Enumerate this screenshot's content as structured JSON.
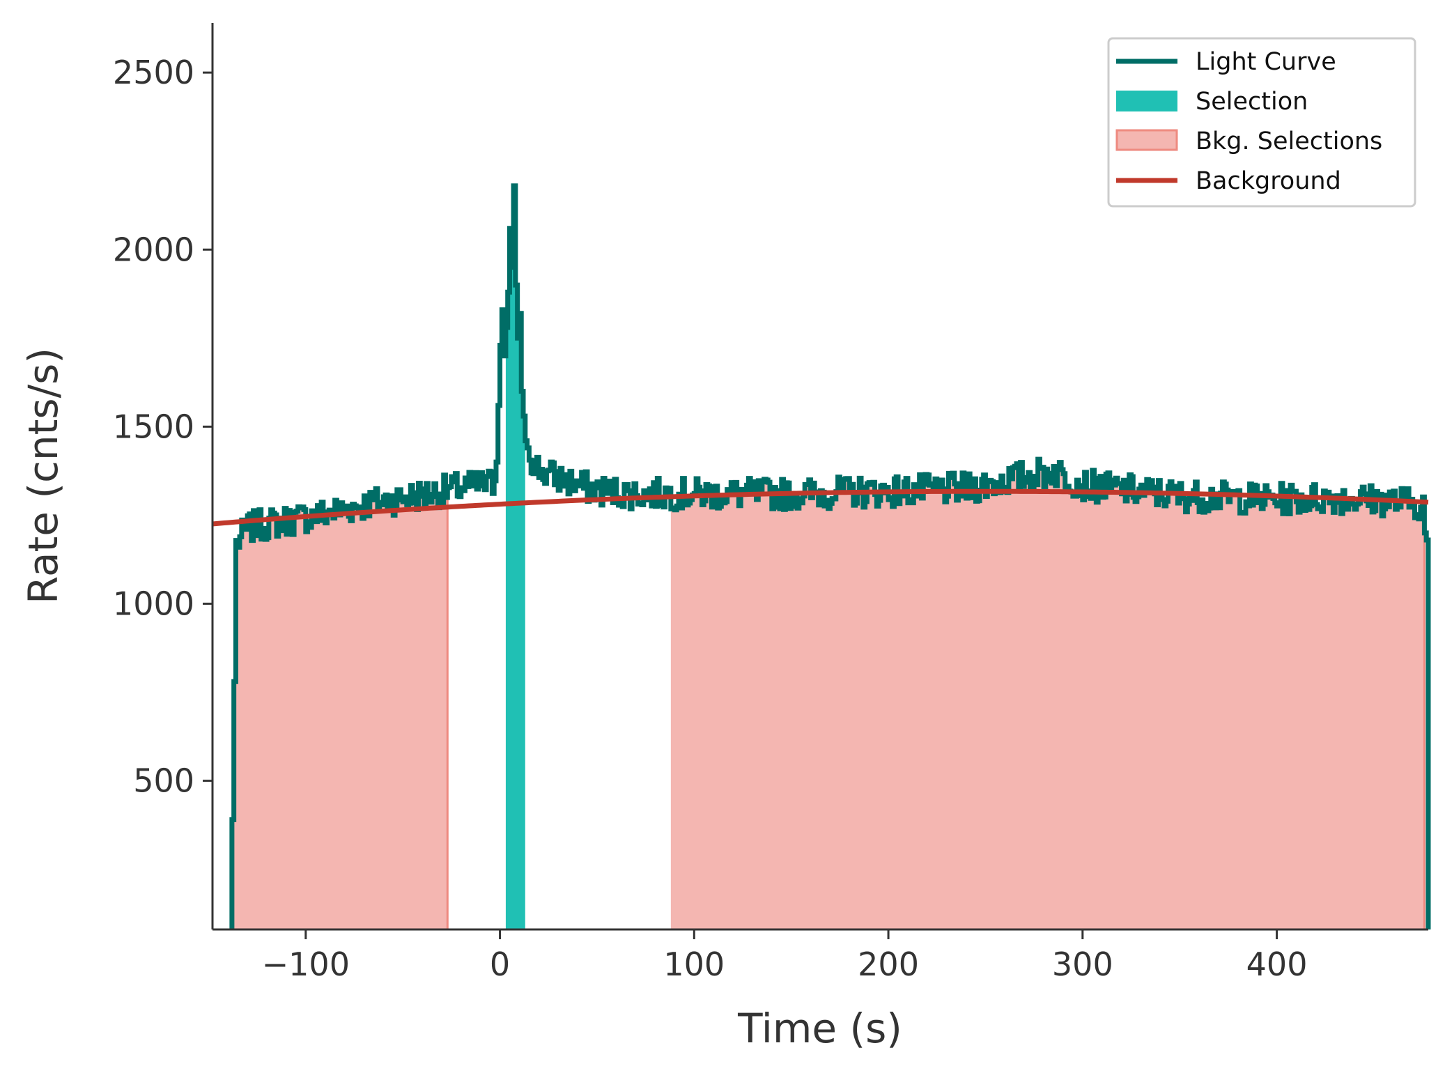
{
  "chart_data": {
    "type": "line",
    "xlabel": "Time (s)",
    "ylabel": "Rate (cnts/s)",
    "xlim": [
      -148,
      478
    ],
    "ylim": [
      80,
      2640
    ],
    "x_ticks": [
      -100,
      0,
      100,
      200,
      300,
      400
    ],
    "x_tick_labels": [
      "−100",
      "0",
      "100",
      "200",
      "300",
      "400"
    ],
    "y_ticks": [
      500,
      1000,
      1500,
      2000,
      2500
    ],
    "y_tick_labels": [
      "500",
      "1000",
      "1500",
      "2000",
      "2500"
    ],
    "grid": false,
    "legend_position": "top-right",
    "colors": {
      "light_curve": "#006d66",
      "selection": "#20c0b4",
      "bkg_fill": "#f4b6b1",
      "bkg_edge": "#ee8a80",
      "background": "#c0392b",
      "axis": "#333333"
    },
    "series": [
      {
        "name": "Light Curve",
        "kind": "step",
        "bin_width": 1,
        "anchors": [
          [
            -138,
            390
          ],
          [
            -136,
            1170
          ],
          [
            -130,
            1215
          ],
          [
            -120,
            1225
          ],
          [
            -110,
            1235
          ],
          [
            -100,
            1245
          ],
          [
            -90,
            1255
          ],
          [
            -80,
            1268
          ],
          [
            -70,
            1280
          ],
          [
            -60,
            1290
          ],
          [
            -50,
            1300
          ],
          [
            -40,
            1308
          ],
          [
            -30,
            1318
          ],
          [
            -20,
            1328
          ],
          [
            -10,
            1335
          ],
          [
            -4,
            1340
          ],
          [
            -2,
            1400
          ],
          [
            -1,
            1560
          ],
          [
            0,
            1730
          ],
          [
            1,
            1830
          ],
          [
            2,
            1700
          ],
          [
            3,
            1780
          ],
          [
            4,
            1880
          ],
          [
            5,
            2060
          ],
          [
            6,
            1950
          ],
          [
            7,
            2180
          ],
          [
            8,
            1900
          ],
          [
            9,
            1750
          ],
          [
            10,
            1820
          ],
          [
            11,
            1600
          ],
          [
            12,
            1530
          ],
          [
            13,
            1460
          ],
          [
            15,
            1420
          ],
          [
            18,
            1390
          ],
          [
            22,
            1370
          ],
          [
            30,
            1355
          ],
          [
            40,
            1335
          ],
          [
            50,
            1320
          ],
          [
            70,
            1310
          ],
          [
            100,
            1310
          ],
          [
            150,
            1310
          ],
          [
            200,
            1318
          ],
          [
            240,
            1325
          ],
          [
            270,
            1360
          ],
          [
            285,
            1375
          ],
          [
            300,
            1335
          ],
          [
            350,
            1305
          ],
          [
            400,
            1295
          ],
          [
            430,
            1300
          ],
          [
            460,
            1290
          ],
          [
            475,
            1280
          ],
          [
            476,
            1200
          ],
          [
            477,
            1180
          ]
        ],
        "noise_amplitude": 45,
        "noise_seed": 7
      },
      {
        "name": "Selection",
        "kind": "band",
        "range": [
          3,
          13
        ]
      },
      {
        "name": "Bkg. Selections",
        "kind": "band",
        "ranges": [
          [
            -137,
            -27
          ],
          [
            88,
            476
          ]
        ]
      },
      {
        "name": "Background",
        "kind": "polynomial",
        "coefficients": [
          1281.1,
          0.2906,
          -0.0005837
        ],
        "x_range": [
          -148,
          478
        ]
      }
    ]
  },
  "legend": [
    {
      "label": "Light Curve",
      "kind": "line",
      "color": "#006d66"
    },
    {
      "label": "Selection",
      "kind": "patch",
      "color": "#20c0b4"
    },
    {
      "label": "Bkg. Selections",
      "kind": "patch",
      "color": "#f4b6b1",
      "edge": "#ee8a80"
    },
    {
      "label": "Background",
      "kind": "line",
      "color": "#c0392b"
    }
  ]
}
